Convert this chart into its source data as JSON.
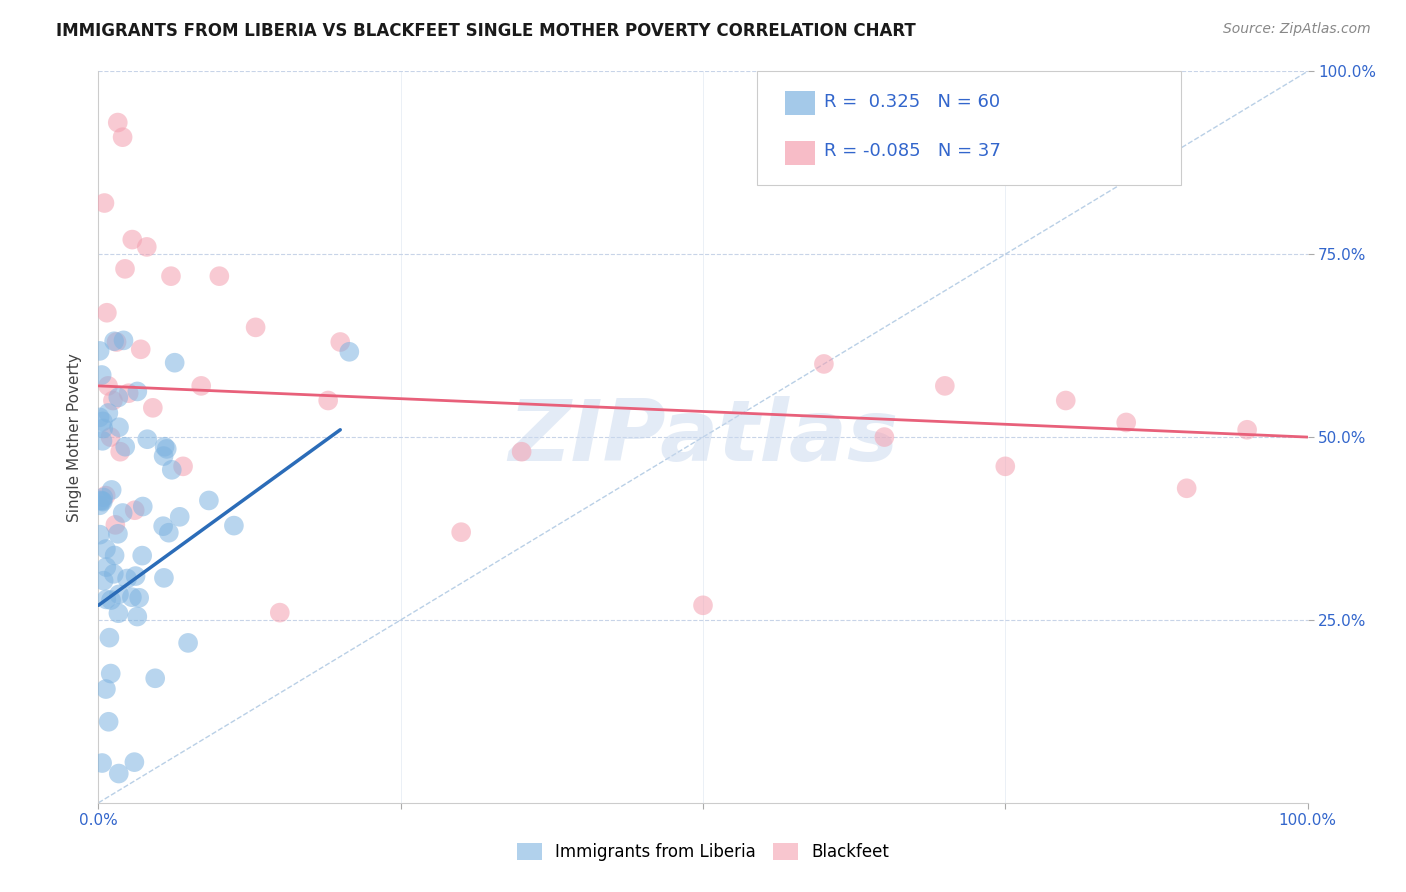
{
  "title": "IMMIGRANTS FROM LIBERIA VS BLACKFEET SINGLE MOTHER POVERTY CORRELATION CHART",
  "source": "Source: ZipAtlas.com",
  "ylabel": "Single Mother Poverty",
  "xlim": [
    0,
    1
  ],
  "ylim": [
    0,
    1
  ],
  "blue_R": 0.325,
  "blue_N": 60,
  "pink_R": -0.085,
  "pink_N": 37,
  "blue_color": "#7EB3E0",
  "pink_color": "#F4A0B0",
  "blue_legend_label": "Immigrants from Liberia",
  "pink_legend_label": "Blackfeet",
  "blue_trend_color": "#2B6CB8",
  "pink_trend_color": "#E8607A",
  "diag_line_color": "#A8C4E0",
  "grid_color": "#C8D4E8",
  "watermark_color": "#C8D8EE",
  "title_fontsize": 12,
  "source_fontsize": 10,
  "legend_label_fontsize": 13,
  "tick_fontsize": 11,
  "ylabel_fontsize": 11,
  "blue_seed": 42,
  "pink_seed": 7,
  "blue_trend_x_start": 0.0,
  "blue_trend_x_end": 0.2,
  "blue_trend_y_start": 0.27,
  "blue_trend_y_end": 0.51,
  "pink_trend_x_start": 0.0,
  "pink_trend_x_end": 1.0,
  "pink_trend_y_start": 0.57,
  "pink_trend_y_end": 0.5
}
